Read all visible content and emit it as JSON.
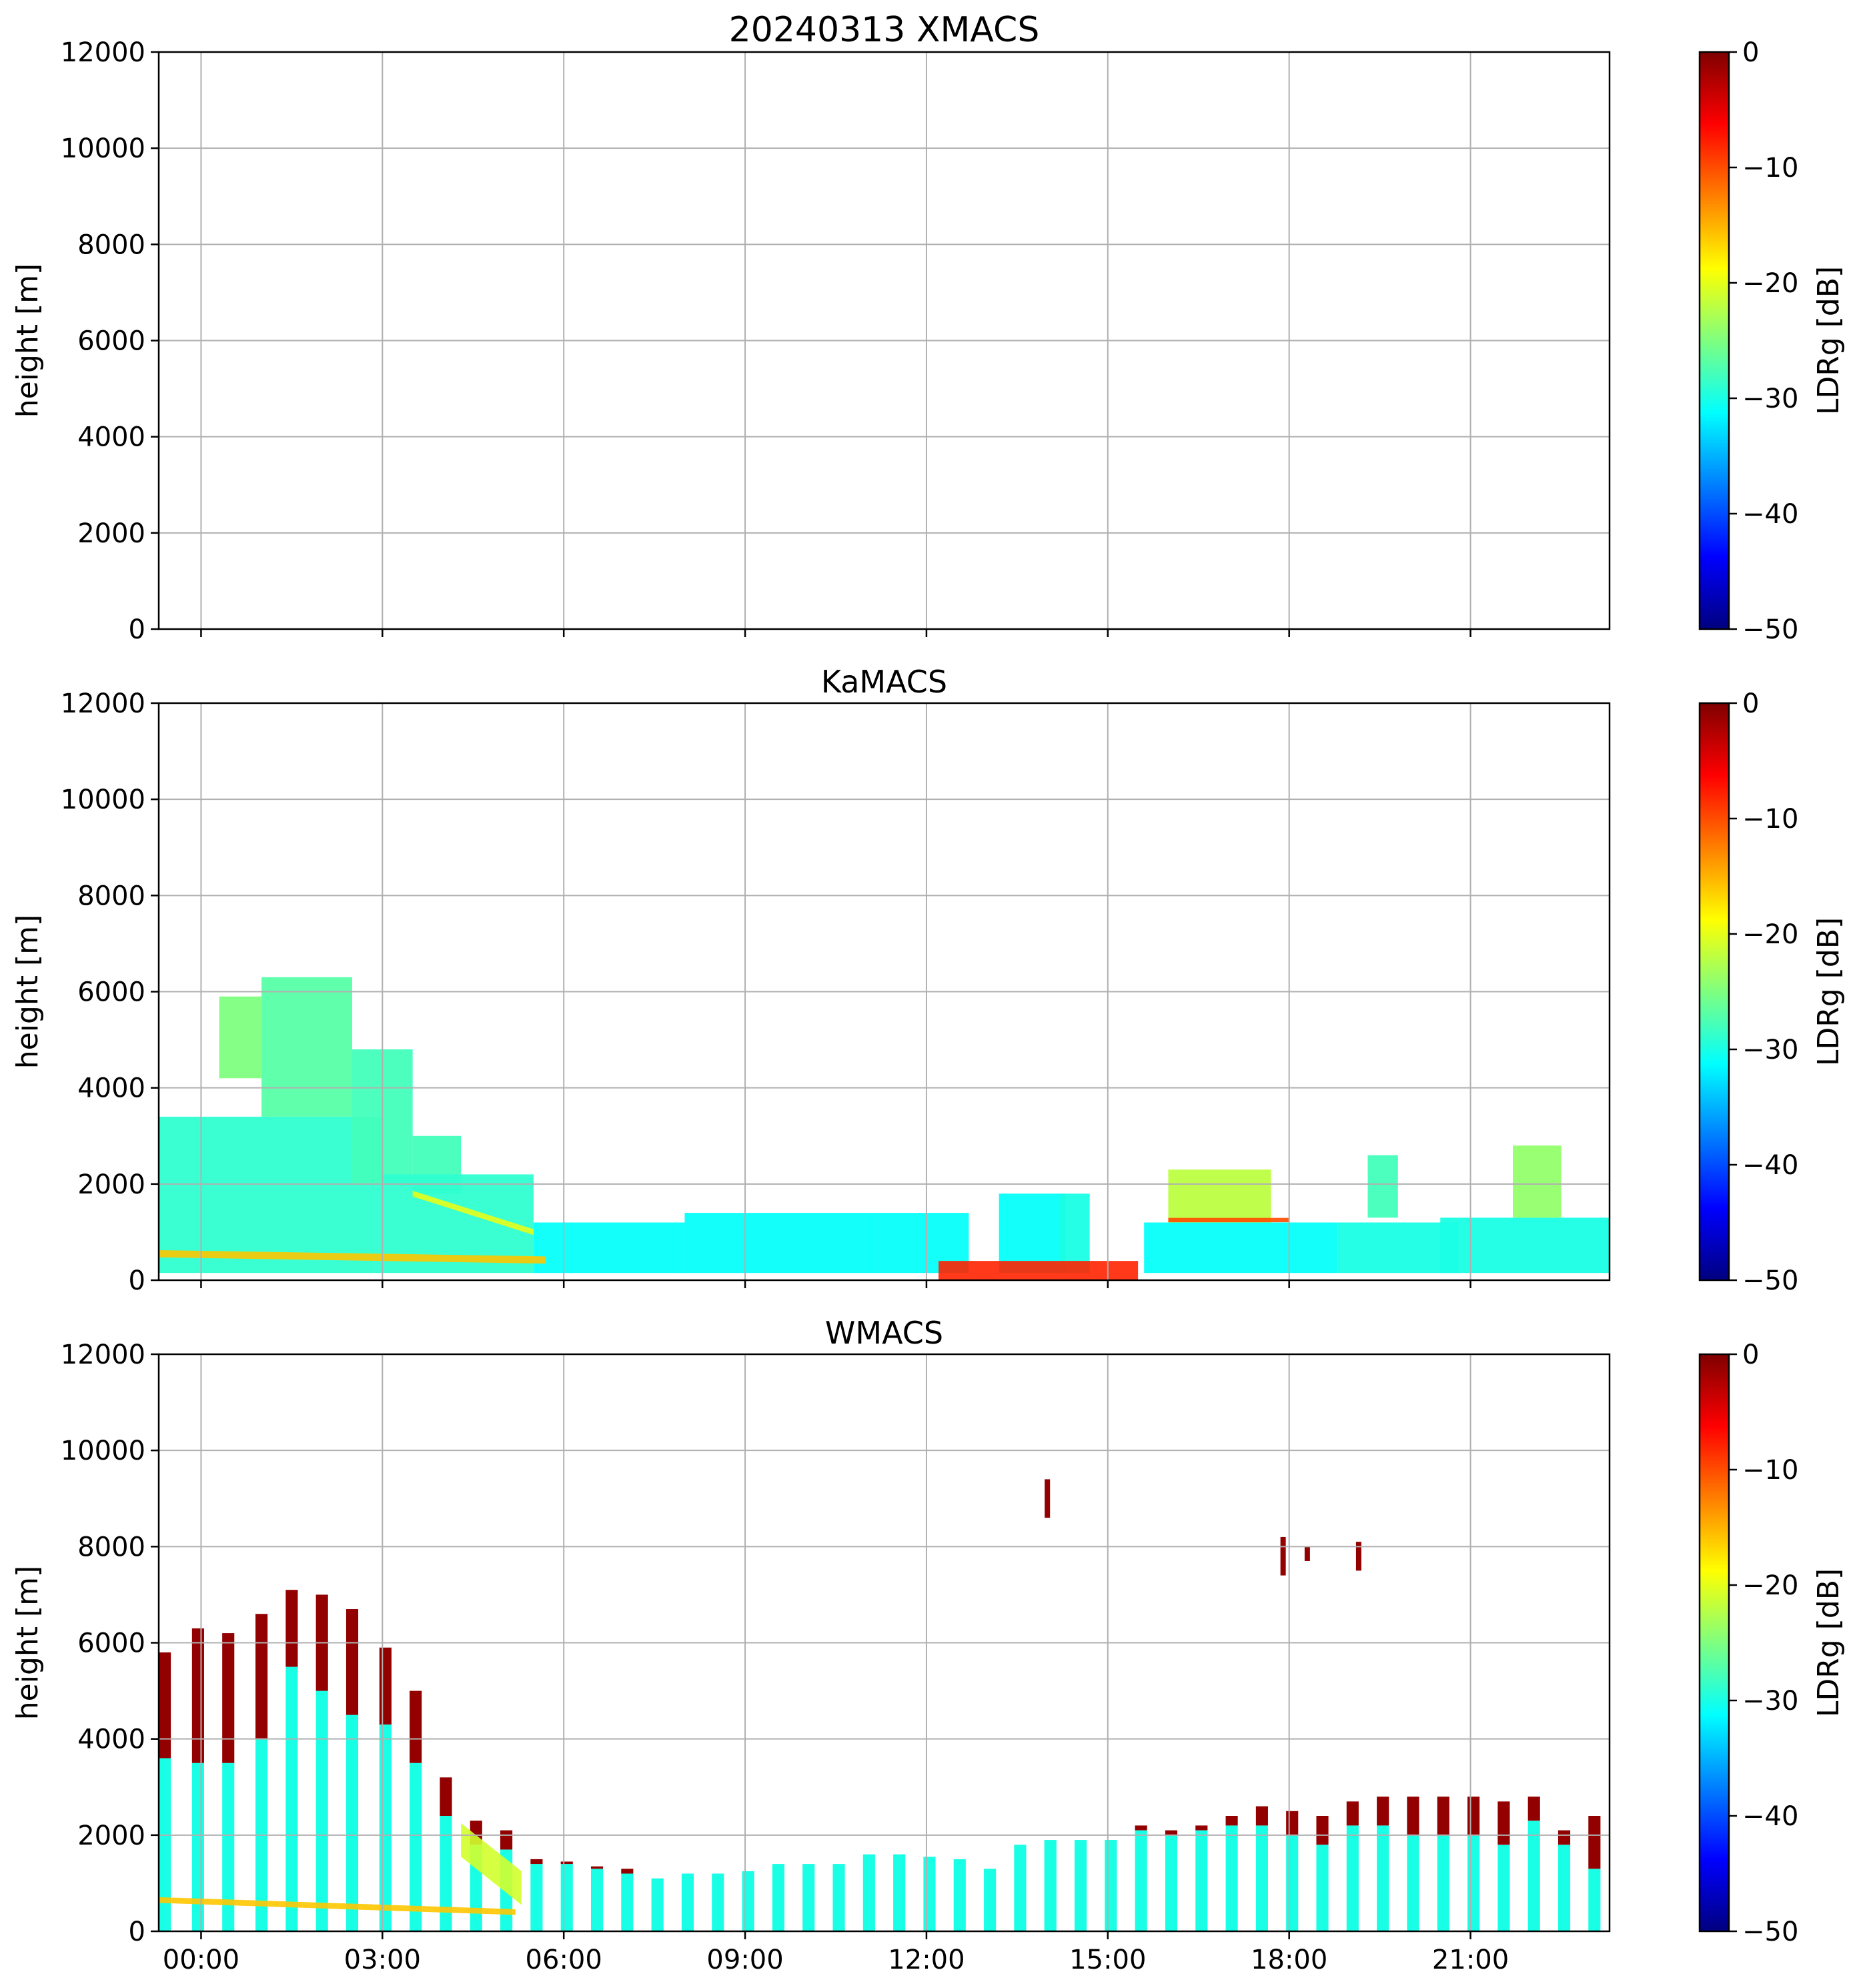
{
  "figure": {
    "colorscale": [
      "#00007f",
      "#0000ff",
      "#007fff",
      "#00ffff",
      "#7fff7f",
      "#ffff00",
      "#ff7f00",
      "#ff0000",
      "#7f0000"
    ]
  },
  "chart_data": [
    {
      "type": "heatmap",
      "title": "20240313 XMACS",
      "xlabel": "",
      "ylabel": "height [m]",
      "xlim_hours": [
        -0.7,
        23.3
      ],
      "ylim": [
        0,
        12000
      ],
      "xticks_hours": [
        0,
        3,
        6,
        9,
        12,
        15,
        18,
        21
      ],
      "xtick_labels": [
        "00:00",
        "03:00",
        "06:00",
        "09:00",
        "12:00",
        "15:00",
        "18:00",
        "21:00"
      ],
      "xtick_labels_visible": false,
      "yticks": [
        0,
        2000,
        4000,
        6000,
        8000,
        10000,
        12000
      ],
      "colorbar": {
        "label": "LDRg [dB]",
        "range": [
          -50,
          0
        ],
        "ticks": [
          0,
          -10,
          -20,
          -30,
          -40,
          -50
        ],
        "tick_labels": [
          "0",
          "−10",
          "−20",
          "−30",
          "−40",
          "−50"
        ]
      },
      "grid": true,
      "regions": []
    },
    {
      "type": "heatmap",
      "title": "KaMACS",
      "xlabel": "",
      "ylabel": "height [m]",
      "xlim_hours": [
        -0.7,
        23.3
      ],
      "ylim": [
        0,
        12000
      ],
      "xticks_hours": [
        0,
        3,
        6,
        9,
        12,
        15,
        18,
        21
      ],
      "xtick_labels": [
        "00:00",
        "03:00",
        "06:00",
        "09:00",
        "12:00",
        "15:00",
        "18:00",
        "21:00"
      ],
      "xtick_labels_visible": false,
      "yticks": [
        0,
        2000,
        4000,
        6000,
        8000,
        10000,
        12000
      ],
      "colorbar": {
        "label": "LDRg [dB]",
        "range": [
          -50,
          0
        ],
        "ticks": [
          0,
          -10,
          -20,
          -30,
          -40,
          -50
        ],
        "tick_labels": [
          "0",
          "−10",
          "−20",
          "−30",
          "−40",
          "−50"
        ]
      },
      "grid": true,
      "regions": [
        {
          "t0": -0.7,
          "t1": 3.0,
          "h0": 150,
          "h1": 3400,
          "ldr": -29
        },
        {
          "t0": 1.0,
          "t1": 2.5,
          "h0": 3400,
          "h1": 6300,
          "ldr": -27
        },
        {
          "t0": 2.5,
          "t1": 3.5,
          "h0": 2000,
          "h1": 4800,
          "ldr": -28
        },
        {
          "t0": 3.5,
          "t1": 4.3,
          "h0": 1800,
          "h1": 3000,
          "ldr": -28
        },
        {
          "t0": 0.3,
          "t1": 1.0,
          "h0": 4200,
          "h1": 5900,
          "ldr": -25
        },
        {
          "t0": 3.0,
          "t1": 5.5,
          "h0": 150,
          "h1": 2200,
          "ldr": -29
        },
        {
          "t0": 5.5,
          "t1": 8.0,
          "h0": 150,
          "h1": 1200,
          "ldr": -31
        },
        {
          "t0": 8.0,
          "t1": 11.2,
          "h0": 150,
          "h1": 1400,
          "ldr": -31
        },
        {
          "t0": 11.2,
          "t1": 12.7,
          "h0": 150,
          "h1": 1400,
          "ldr": -31
        },
        {
          "t0": 13.2,
          "t1": 14.3,
          "h0": 150,
          "h1": 1800,
          "ldr": -31
        },
        {
          "t0": 14.2,
          "t1": 14.7,
          "h0": 150,
          "h1": 1800,
          "ldr": -30
        },
        {
          "t0": 15.6,
          "t1": 18.8,
          "h0": 150,
          "h1": 1200,
          "ldr": -31
        },
        {
          "t0": 16.0,
          "t1": 17.7,
          "h0": 1200,
          "h1": 2300,
          "ldr": -22
        },
        {
          "t0": 18.8,
          "t1": 20.8,
          "h0": 150,
          "h1": 1200,
          "ldr": -30
        },
        {
          "t0": 20.5,
          "t1": 23.3,
          "h0": 150,
          "h1": 1300,
          "ldr": -30
        },
        {
          "t0": 21.7,
          "t1": 22.5,
          "h0": 1300,
          "h1": 2800,
          "ldr": -24
        },
        {
          "t0": 19.3,
          "t1": 19.8,
          "h0": 1300,
          "h1": 2600,
          "ldr": -28
        }
      ],
      "bands": [
        {
          "t0": -0.7,
          "t1": 5.7,
          "h0": 550,
          "h1": 420,
          "thickness": 150,
          "ldr": -16
        },
        {
          "t0": 3.5,
          "t1": 5.5,
          "h0": 1800,
          "h1": 1000,
          "thickness": 120,
          "ldr": -20
        },
        {
          "t0": 16.0,
          "t1": 18.0,
          "h0": 1250,
          "h1": 1250,
          "thickness": 90,
          "ldr": -10
        },
        {
          "t0": 12.2,
          "t1": 15.5,
          "h0": 200,
          "h1": 200,
          "thickness": 400,
          "ldr": -8
        }
      ]
    },
    {
      "type": "heatmap",
      "title": "WMACS",
      "xlabel": "",
      "ylabel": "height [m]",
      "xlim_hours": [
        -0.7,
        23.3
      ],
      "ylim": [
        0,
        12000
      ],
      "xticks_hours": [
        0,
        3,
        6,
        9,
        12,
        15,
        18,
        21
      ],
      "xtick_labels": [
        "00:00",
        "03:00",
        "06:00",
        "09:00",
        "12:00",
        "15:00",
        "18:00",
        "21:00"
      ],
      "xtick_labels_visible": true,
      "yticks": [
        0,
        2000,
        4000,
        6000,
        8000,
        10000,
        12000
      ],
      "colorbar": {
        "label": "LDRg [dB]",
        "range": [
          -50,
          0
        ],
        "ticks": [
          0,
          -10,
          -20,
          -30,
          -40,
          -50
        ],
        "tick_labels": [
          "0",
          "−10",
          "−20",
          "−30",
          "−40",
          "−50"
        ]
      },
      "grid": true,
      "column_width_hours": 0.2,
      "columns": [
        {
          "t": -0.6,
          "top": 5800,
          "green_top": 3600
        },
        {
          "t": -0.05,
          "top": 6300,
          "green_top": 3500
        },
        {
          "t": 0.45,
          "top": 6200,
          "green_top": 3500
        },
        {
          "t": 1.0,
          "top": 6600,
          "green_top": 4000
        },
        {
          "t": 1.5,
          "top": 7100,
          "green_top": 5500
        },
        {
          "t": 2.0,
          "top": 7000,
          "green_top": 5000
        },
        {
          "t": 2.5,
          "top": 6700,
          "green_top": 4500
        },
        {
          "t": 3.05,
          "top": 5900,
          "green_top": 4300
        },
        {
          "t": 3.55,
          "top": 5000,
          "green_top": 3500
        },
        {
          "t": 4.05,
          "top": 3200,
          "green_top": 2400
        },
        {
          "t": 4.55,
          "top": 2300,
          "green_top": 1800
        },
        {
          "t": 5.05,
          "top": 2100,
          "green_top": 1700
        },
        {
          "t": 5.55,
          "top": 1500,
          "green_top": 1400
        },
        {
          "t": 6.05,
          "top": 1450,
          "green_top": 1400
        },
        {
          "t": 6.55,
          "top": 1350,
          "green_top": 1300
        },
        {
          "t": 7.05,
          "top": 1300,
          "green_top": 1200
        },
        {
          "t": 7.55,
          "top": 1100,
          "green_top": 1100
        },
        {
          "t": 8.05,
          "top": 1200,
          "green_top": 1200
        },
        {
          "t": 8.55,
          "top": 1200,
          "green_top": 1200
        },
        {
          "t": 9.05,
          "top": 1250,
          "green_top": 1250
        },
        {
          "t": 9.55,
          "top": 1400,
          "green_top": 1400
        },
        {
          "t": 10.05,
          "top": 1400,
          "green_top": 1400
        },
        {
          "t": 10.55,
          "top": 1400,
          "green_top": 1400
        },
        {
          "t": 11.05,
          "top": 1600,
          "green_top": 1600
        },
        {
          "t": 11.55,
          "top": 1600,
          "green_top": 1600
        },
        {
          "t": 12.05,
          "top": 1550,
          "green_top": 1550
        },
        {
          "t": 12.55,
          "top": 1500,
          "green_top": 1500
        },
        {
          "t": 13.05,
          "top": 1300,
          "green_top": 1300
        },
        {
          "t": 13.55,
          "top": 1800,
          "green_top": 1800
        },
        {
          "t": 14.05,
          "top": 1900,
          "green_top": 1900
        },
        {
          "t": 14.55,
          "top": 1900,
          "green_top": 1900
        },
        {
          "t": 15.05,
          "top": 1900,
          "green_top": 1900
        },
        {
          "t": 15.55,
          "top": 2200,
          "green_top": 2100
        },
        {
          "t": 16.05,
          "top": 2100,
          "green_top": 2000
        },
        {
          "t": 16.55,
          "top": 2200,
          "green_top": 2100
        },
        {
          "t": 17.05,
          "top": 2400,
          "green_top": 2200
        },
        {
          "t": 17.55,
          "top": 2600,
          "green_top": 2200
        },
        {
          "t": 18.05,
          "top": 2500,
          "green_top": 2000
        },
        {
          "t": 18.55,
          "top": 2400,
          "green_top": 1800
        },
        {
          "t": 19.05,
          "top": 2700,
          "green_top": 2200
        },
        {
          "t": 19.55,
          "top": 2800,
          "green_top": 2200
        },
        {
          "t": 20.05,
          "top": 2800,
          "green_top": 2000
        },
        {
          "t": 20.55,
          "top": 2800,
          "green_top": 2000
        },
        {
          "t": 21.05,
          "top": 2800,
          "green_top": 2000
        },
        {
          "t": 21.55,
          "top": 2700,
          "green_top": 1800
        },
        {
          "t": 22.05,
          "top": 2800,
          "green_top": 2300
        },
        {
          "t": 22.55,
          "top": 2100,
          "green_top": 1800
        },
        {
          "t": 23.05,
          "top": 2400,
          "green_top": 1300
        }
      ],
      "bands": [
        {
          "t0": -0.7,
          "t1": 5.2,
          "h0": 650,
          "h1": 400,
          "thickness": 120,
          "ldr": -16
        },
        {
          "t0": 4.3,
          "t1": 5.3,
          "h0": 1900,
          "h1": 900,
          "thickness": 700,
          "ldr": -21
        }
      ],
      "flecks": [
        {
          "t": 14.0,
          "h0": 8600,
          "h1": 9400
        },
        {
          "t": 17.9,
          "h0": 7400,
          "h1": 8200
        },
        {
          "t": 19.15,
          "h0": 7500,
          "h1": 8100
        },
        {
          "t": 18.3,
          "h0": 7700,
          "h1": 8000
        }
      ]
    }
  ]
}
